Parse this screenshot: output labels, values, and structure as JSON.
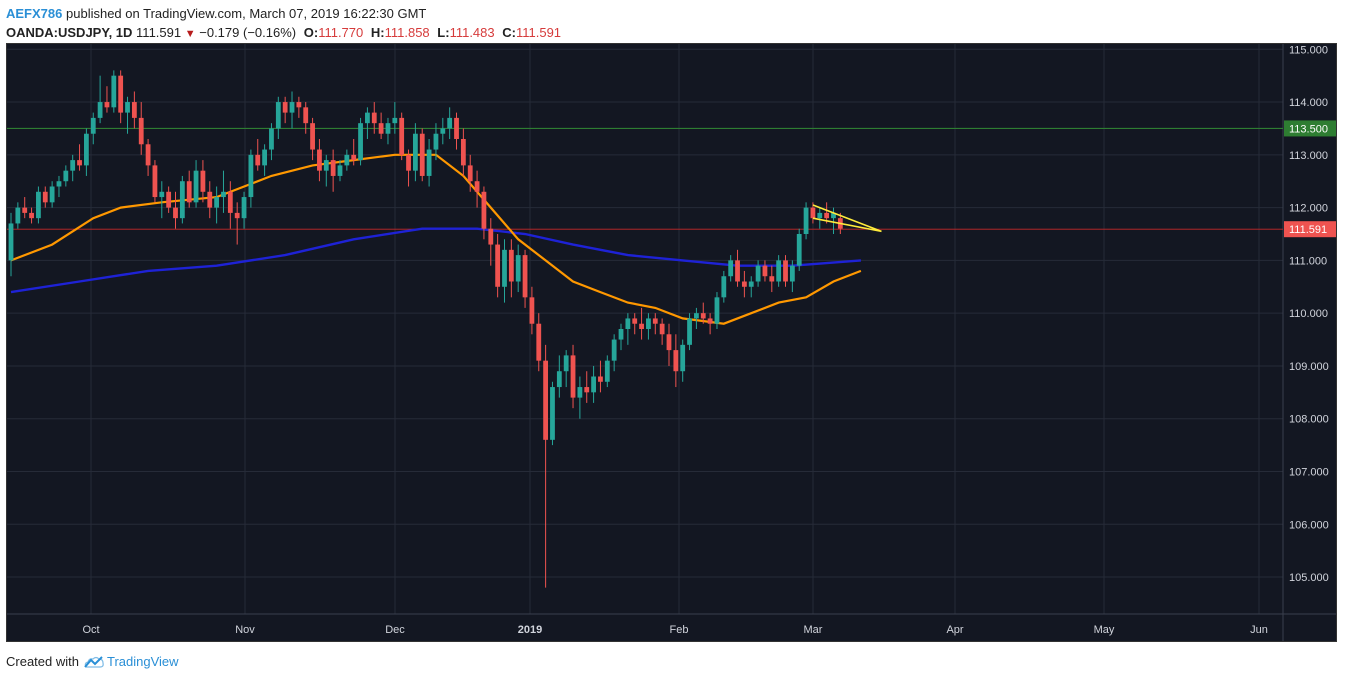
{
  "header": {
    "author": "AEFX786",
    "published_text": "published on TradingView.com, March 07, 2019 16:22:30 GMT",
    "symbol": "OANDA:USDJPY, 1D",
    "last": "111.591",
    "change": "−0.179 (−0.16%)",
    "open_label": "O:",
    "open": "111.770",
    "high_label": "H:",
    "high": "111.858",
    "low_label": "L:",
    "low": "111.483",
    "close_label": "C:",
    "close": "111.591"
  },
  "footer": {
    "created_with": "Created with",
    "brand": "TradingView",
    "logo_icon": "tradingview-cloud-logo-icon"
  },
  "colors": {
    "background": "#131722",
    "grid": "#262b38",
    "up": "#26a69a",
    "down": "#ef5350",
    "ma_fast": "#ff9800",
    "ma_slow": "#1e22d6",
    "resistance": "#2e7d32",
    "triangle": "#ffeb3b",
    "price_line": "#c62828"
  },
  "chart_data": {
    "type": "candlestick",
    "x_labels": [
      "Oct",
      "Nov",
      "Dec",
      "2019",
      "Feb",
      "Mar",
      "Apr",
      "May",
      "Jun"
    ],
    "y_ticks": [
      "105.000",
      "106.000",
      "107.000",
      "108.000",
      "109.000",
      "110.000",
      "111.000",
      "112.000",
      "113.000",
      "114.000",
      "115.000"
    ],
    "ylim": [
      104.3,
      115.1
    ],
    "resistance_label": "113.500",
    "resistance_value": 113.5,
    "last_price_label": "111.591",
    "last_price_value": 111.591,
    "ohlc": [
      [
        111.0,
        111.9,
        110.7,
        111.7
      ],
      [
        111.7,
        112.1,
        111.6,
        112.0
      ],
      [
        112.0,
        112.2,
        111.8,
        111.9
      ],
      [
        111.9,
        112.0,
        111.7,
        111.8
      ],
      [
        111.8,
        112.4,
        111.7,
        112.3
      ],
      [
        112.3,
        112.4,
        112.0,
        112.1
      ],
      [
        112.1,
        112.5,
        112.0,
        112.4
      ],
      [
        112.4,
        112.6,
        112.2,
        112.5
      ],
      [
        112.5,
        112.8,
        112.4,
        112.7
      ],
      [
        112.7,
        113.0,
        112.5,
        112.9
      ],
      [
        112.9,
        113.2,
        112.7,
        112.8
      ],
      [
        112.8,
        113.5,
        112.6,
        113.4
      ],
      [
        113.4,
        113.8,
        113.2,
        113.7
      ],
      [
        113.7,
        114.5,
        113.6,
        114.0
      ],
      [
        114.0,
        114.3,
        113.8,
        113.9
      ],
      [
        113.9,
        114.6,
        113.8,
        114.5
      ],
      [
        114.5,
        114.6,
        113.6,
        113.8
      ],
      [
        113.8,
        114.1,
        113.4,
        114.0
      ],
      [
        114.0,
        114.2,
        113.5,
        113.7
      ],
      [
        113.7,
        114.0,
        113.0,
        113.2
      ],
      [
        113.2,
        113.3,
        112.6,
        112.8
      ],
      [
        112.8,
        112.9,
        112.1,
        112.2
      ],
      [
        112.2,
        112.5,
        111.8,
        112.3
      ],
      [
        112.3,
        112.4,
        111.9,
        112.0
      ],
      [
        112.0,
        112.3,
        111.6,
        111.8
      ],
      [
        111.8,
        112.6,
        111.7,
        112.5
      ],
      [
        112.5,
        112.7,
        112.0,
        112.1
      ],
      [
        112.1,
        112.9,
        112.0,
        112.7
      ],
      [
        112.7,
        112.9,
        112.1,
        112.3
      ],
      [
        112.3,
        112.5,
        111.8,
        112.0
      ],
      [
        112.0,
        112.4,
        111.7,
        112.2
      ],
      [
        112.2,
        112.7,
        111.9,
        112.3
      ],
      [
        112.3,
        112.5,
        111.6,
        111.9
      ],
      [
        111.9,
        112.1,
        111.3,
        111.8
      ],
      [
        111.8,
        112.3,
        111.6,
        112.2
      ],
      [
        112.2,
        113.1,
        112.0,
        113.0
      ],
      [
        113.0,
        113.3,
        112.7,
        112.8
      ],
      [
        112.8,
        113.2,
        112.6,
        113.1
      ],
      [
        113.1,
        113.6,
        112.9,
        113.5
      ],
      [
        113.5,
        114.1,
        113.3,
        114.0
      ],
      [
        114.0,
        114.1,
        113.6,
        113.8
      ],
      [
        113.8,
        114.2,
        113.5,
        114.0
      ],
      [
        114.0,
        114.1,
        113.7,
        113.9
      ],
      [
        113.9,
        114.0,
        113.4,
        113.6
      ],
      [
        113.6,
        113.7,
        112.9,
        113.1
      ],
      [
        113.1,
        113.3,
        112.5,
        112.7
      ],
      [
        112.7,
        113.0,
        112.4,
        112.9
      ],
      [
        112.9,
        113.1,
        112.3,
        112.6
      ],
      [
        112.6,
        112.9,
        112.5,
        112.8
      ],
      [
        112.8,
        113.1,
        112.7,
        113.0
      ],
      [
        113.0,
        113.3,
        112.8,
        112.9
      ],
      [
        112.9,
        113.7,
        112.8,
        113.6
      ],
      [
        113.6,
        113.9,
        113.3,
        113.8
      ],
      [
        113.8,
        114.0,
        113.4,
        113.6
      ],
      [
        113.6,
        113.8,
        113.3,
        113.4
      ],
      [
        113.4,
        113.7,
        113.2,
        113.6
      ],
      [
        113.6,
        114.0,
        113.4,
        113.7
      ],
      [
        113.7,
        113.8,
        112.9,
        113.0
      ],
      [
        113.0,
        113.1,
        112.4,
        112.7
      ],
      [
        112.7,
        113.6,
        112.5,
        113.4
      ],
      [
        113.4,
        113.5,
        112.5,
        112.6
      ],
      [
        112.6,
        113.3,
        112.4,
        113.1
      ],
      [
        113.1,
        113.6,
        112.9,
        113.4
      ],
      [
        113.4,
        113.7,
        113.2,
        113.5
      ],
      [
        113.5,
        113.9,
        113.3,
        113.7
      ],
      [
        113.7,
        113.8,
        113.1,
        113.3
      ],
      [
        113.3,
        113.5,
        112.6,
        112.8
      ],
      [
        112.8,
        113.0,
        112.3,
        112.5
      ],
      [
        112.5,
        112.7,
        112.0,
        112.3
      ],
      [
        112.3,
        112.4,
        111.4,
        111.6
      ],
      [
        111.6,
        111.8,
        110.9,
        111.3
      ],
      [
        111.3,
        111.5,
        110.3,
        110.5
      ],
      [
        110.5,
        111.4,
        110.2,
        111.2
      ],
      [
        111.2,
        111.4,
        110.3,
        110.6
      ],
      [
        110.6,
        111.3,
        110.4,
        111.1
      ],
      [
        111.1,
        111.2,
        110.1,
        110.3
      ],
      [
        110.3,
        110.5,
        109.6,
        109.8
      ],
      [
        109.8,
        110.0,
        108.9,
        109.1
      ],
      [
        109.1,
        109.4,
        104.8,
        107.6
      ],
      [
        107.6,
        108.7,
        107.5,
        108.6
      ],
      [
        108.6,
        109.2,
        108.4,
        108.9
      ],
      [
        108.9,
        109.3,
        108.6,
        109.2
      ],
      [
        109.2,
        109.4,
        108.2,
        108.4
      ],
      [
        108.4,
        108.8,
        108.0,
        108.6
      ],
      [
        108.6,
        108.9,
        108.3,
        108.5
      ],
      [
        108.5,
        109.0,
        108.3,
        108.8
      ],
      [
        108.8,
        109.1,
        108.5,
        108.7
      ],
      [
        108.7,
        109.2,
        108.6,
        109.1
      ],
      [
        109.1,
        109.6,
        108.9,
        109.5
      ],
      [
        109.5,
        109.8,
        109.3,
        109.7
      ],
      [
        109.7,
        110.0,
        109.4,
        109.9
      ],
      [
        109.9,
        110.0,
        109.6,
        109.8
      ],
      [
        109.8,
        110.1,
        109.5,
        109.7
      ],
      [
        109.7,
        110.0,
        109.5,
        109.9
      ],
      [
        109.9,
        110.0,
        109.6,
        109.8
      ],
      [
        109.8,
        109.9,
        109.4,
        109.6
      ],
      [
        109.6,
        109.8,
        109.0,
        109.3
      ],
      [
        109.3,
        109.6,
        108.6,
        108.9
      ],
      [
        108.9,
        109.5,
        108.7,
        109.4
      ],
      [
        109.4,
        110.0,
        109.3,
        109.9
      ],
      [
        109.9,
        110.1,
        109.7,
        110.0
      ],
      [
        110.0,
        110.2,
        109.8,
        109.9
      ],
      [
        109.9,
        110.0,
        109.6,
        109.8
      ],
      [
        109.8,
        110.4,
        109.7,
        110.3
      ],
      [
        110.3,
        110.8,
        110.2,
        110.7
      ],
      [
        110.7,
        111.1,
        110.6,
        111.0
      ],
      [
        111.0,
        111.2,
        110.5,
        110.6
      ],
      [
        110.6,
        110.8,
        110.3,
        110.5
      ],
      [
        110.5,
        110.7,
        110.3,
        110.6
      ],
      [
        110.6,
        111.0,
        110.5,
        110.9
      ],
      [
        110.9,
        111.0,
        110.6,
        110.7
      ],
      [
        110.7,
        110.9,
        110.4,
        110.6
      ],
      [
        110.6,
        111.1,
        110.5,
        111.0
      ],
      [
        111.0,
        111.1,
        110.5,
        110.6
      ],
      [
        110.6,
        111.0,
        110.4,
        110.9
      ],
      [
        110.9,
        111.6,
        110.8,
        111.5
      ],
      [
        111.5,
        112.1,
        111.4,
        112.0
      ],
      [
        112.0,
        112.1,
        111.7,
        111.8
      ],
      [
        111.8,
        112.0,
        111.6,
        111.9
      ],
      [
        111.9,
        112.1,
        111.7,
        111.8
      ],
      [
        111.8,
        112.0,
        111.5,
        111.9
      ],
      [
        111.8,
        111.9,
        111.5,
        111.6
      ]
    ],
    "ma_fast_points": [
      [
        0,
        111.0
      ],
      [
        6,
        111.3
      ],
      [
        12,
        111.8
      ],
      [
        16,
        112.0
      ],
      [
        22,
        112.1
      ],
      [
        30,
        112.2
      ],
      [
        38,
        112.6
      ],
      [
        44,
        112.8
      ],
      [
        50,
        112.9
      ],
      [
        56,
        113.0
      ],
      [
        62,
        113.0
      ],
      [
        66,
        112.6
      ],
      [
        70,
        112.0
      ],
      [
        74,
        111.4
      ],
      [
        78,
        111.0
      ],
      [
        82,
        110.6
      ],
      [
        86,
        110.4
      ],
      [
        90,
        110.2
      ],
      [
        94,
        110.1
      ],
      [
        98,
        109.9
      ],
      [
        104,
        109.8
      ],
      [
        108,
        110.0
      ],
      [
        112,
        110.2
      ],
      [
        116,
        110.3
      ],
      [
        120,
        110.6
      ],
      [
        124,
        110.8
      ]
    ],
    "ma_slow_points": [
      [
        0,
        110.4
      ],
      [
        10,
        110.6
      ],
      [
        20,
        110.8
      ],
      [
        30,
        110.9
      ],
      [
        40,
        111.1
      ],
      [
        50,
        111.4
      ],
      [
        60,
        111.6
      ],
      [
        68,
        111.6
      ],
      [
        75,
        111.5
      ],
      [
        82,
        111.3
      ],
      [
        90,
        111.1
      ],
      [
        98,
        111.0
      ],
      [
        106,
        110.9
      ],
      [
        114,
        110.9
      ],
      [
        124,
        111.0
      ]
    ],
    "triangle_points": [
      [
        117,
        112.05
      ],
      [
        127,
        111.55
      ],
      [
        117,
        111.8
      ]
    ],
    "bar_count": 185
  }
}
